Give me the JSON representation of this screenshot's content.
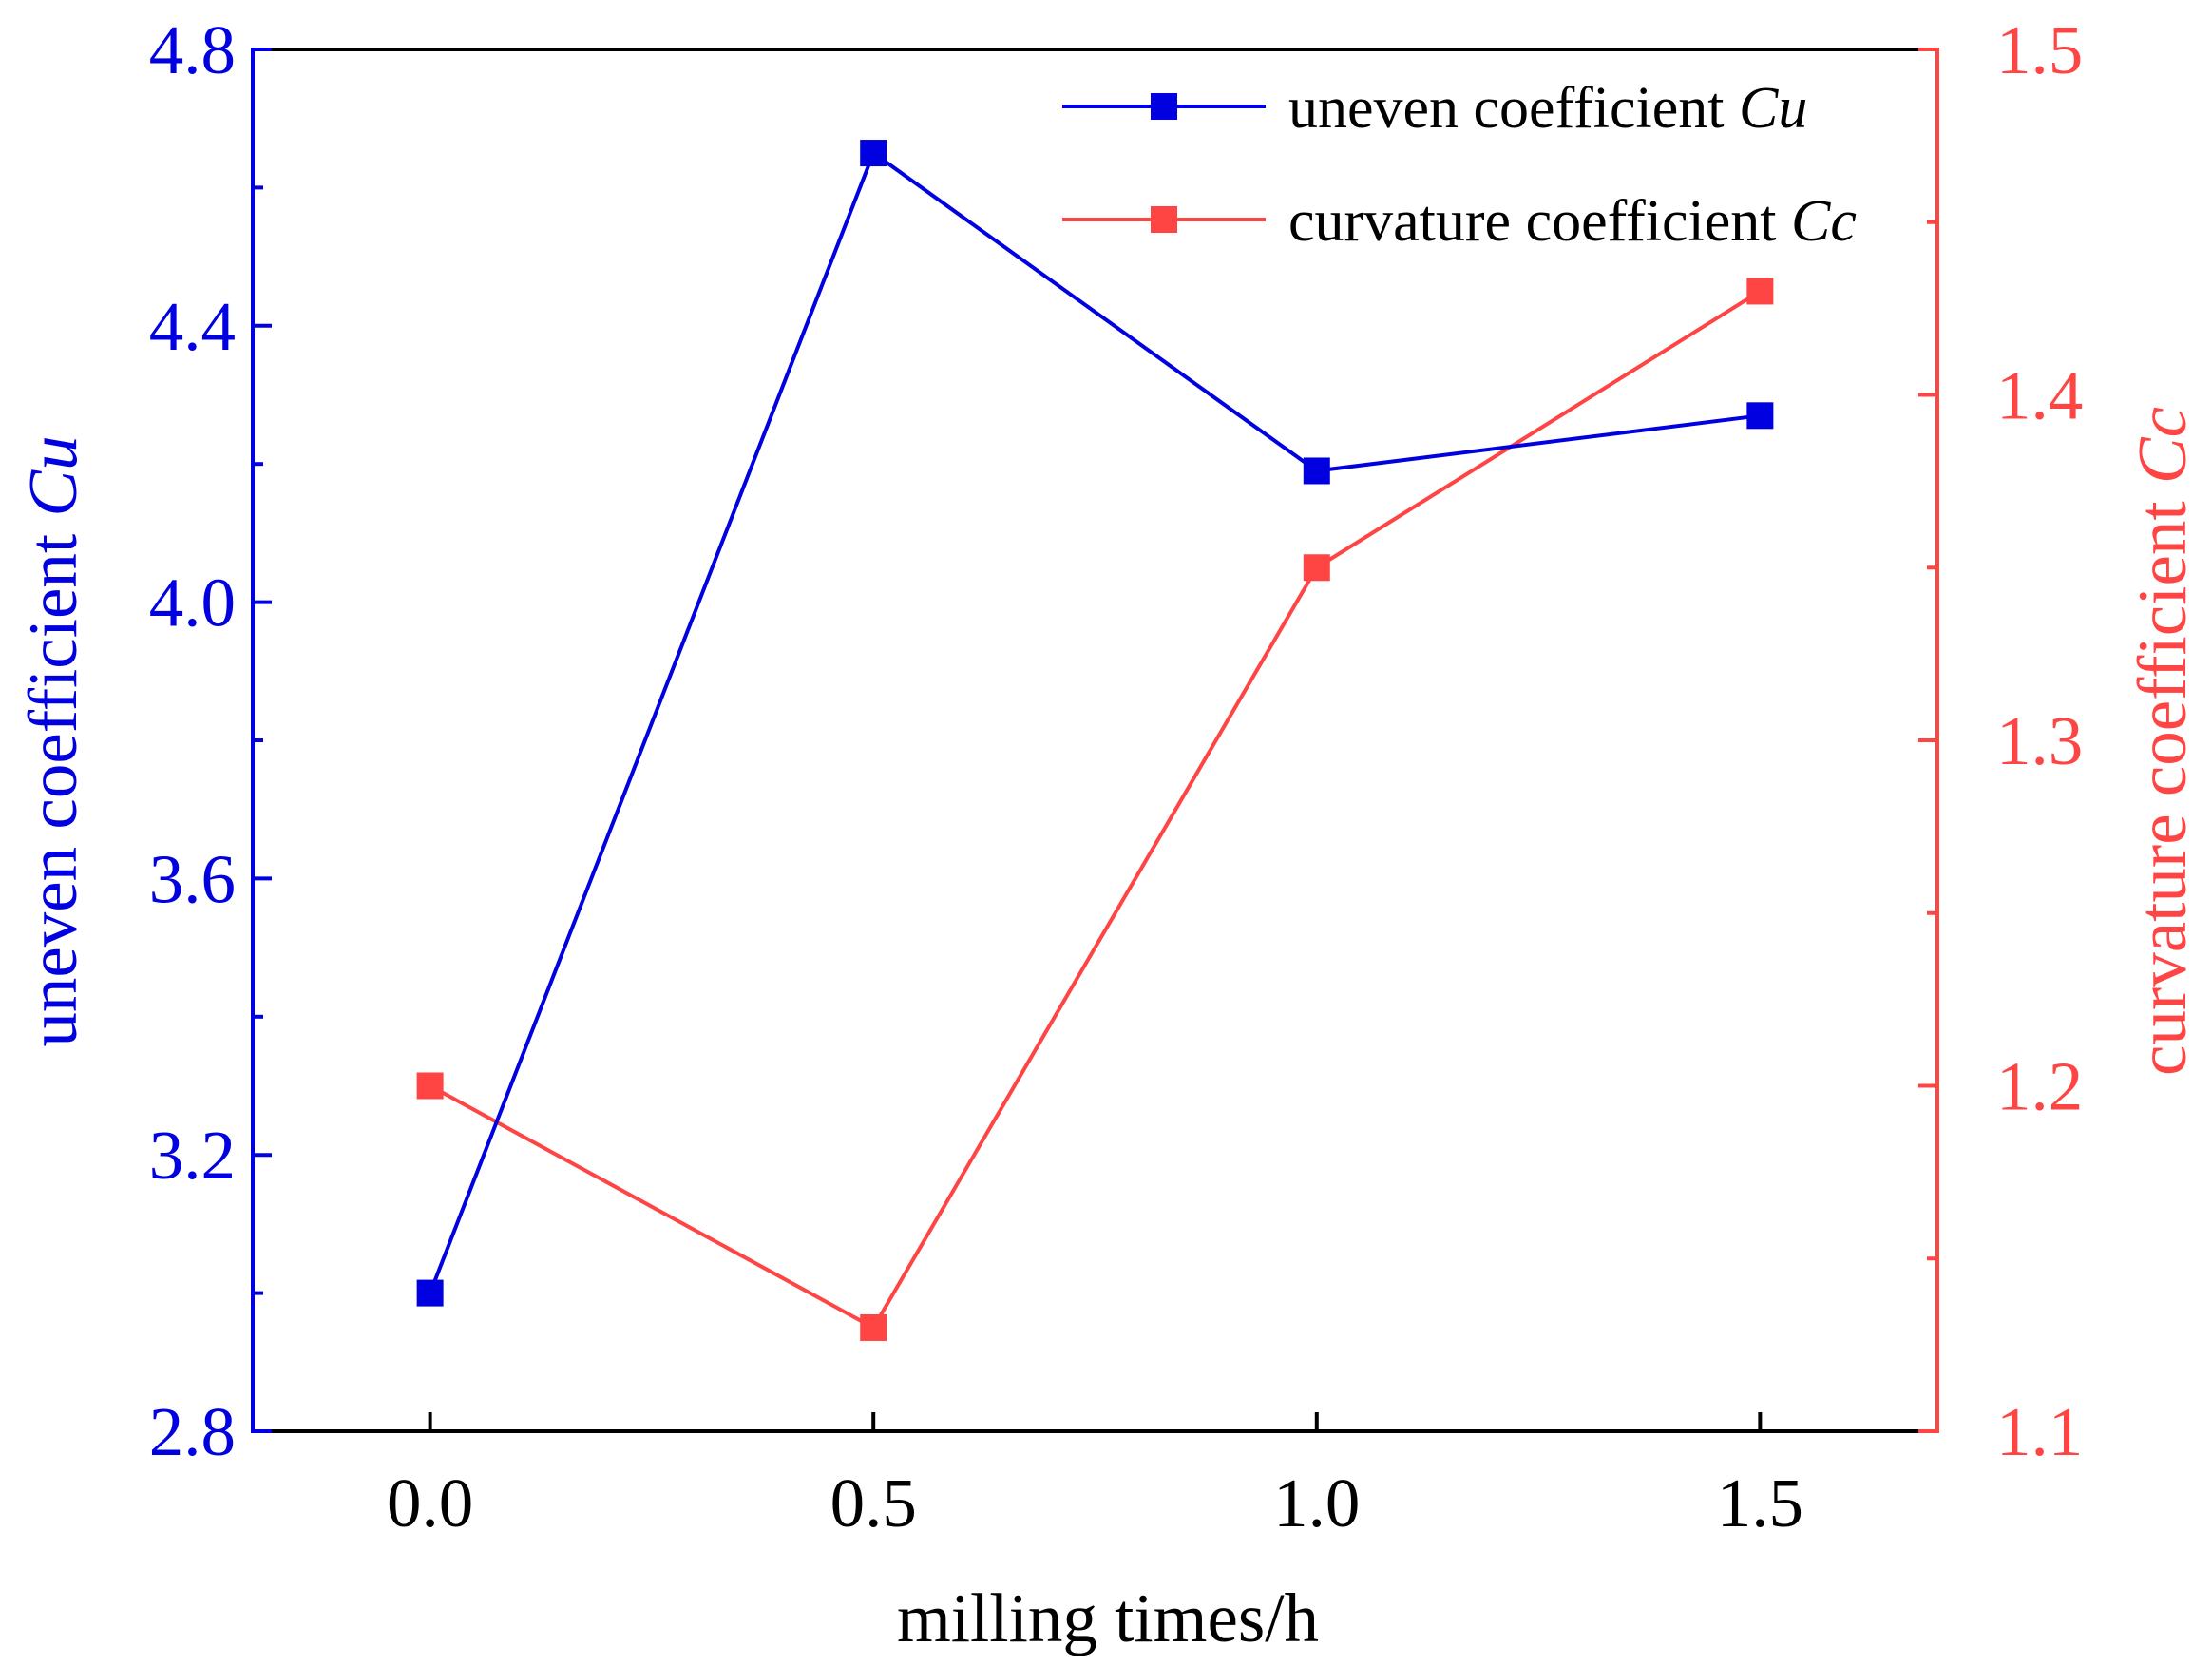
{
  "chart_data": {
    "type": "line",
    "x": [
      0.0,
      0.5,
      1.0,
      1.5
    ],
    "xlabel": "milling times/h",
    "xlim": [
      -0.2,
      1.7
    ],
    "xticks": [
      0.0,
      0.5,
      1.0,
      1.5
    ],
    "xtick_labels": [
      "0.0",
      "0.5",
      "1.0",
      "1.5"
    ],
    "y_left": {
      "label_main": "uneven coefficient ",
      "label_symbol": "Cu",
      "ylim": [
        2.8,
        4.8
      ],
      "ticks": [
        2.8,
        3.2,
        3.6,
        4.0,
        4.4,
        4.8
      ],
      "tick_labels": [
        "2.8",
        "3.2",
        "3.6",
        "4.0",
        "4.4",
        "4.8"
      ],
      "color": "#0000e0"
    },
    "y_right": {
      "label_main": "curvature coefficient ",
      "label_symbol": "Cc",
      "ylim": [
        1.1,
        1.5
      ],
      "ticks": [
        1.1,
        1.2,
        1.3,
        1.4,
        1.5
      ],
      "tick_labels": [
        "1.1",
        "1.2",
        "1.3",
        "1.4",
        "1.5"
      ],
      "color": "#ff4444"
    },
    "series": [
      {
        "name": "uneven coefficient Cu",
        "label_main": "uneven coefficient ",
        "label_symbol": "Cu",
        "axis": "left",
        "color": "#0000e0",
        "marker": "square",
        "values": [
          3.0,
          4.65,
          4.19,
          4.27
        ]
      },
      {
        "name": "curvature coefficient Cc",
        "label_main": "curvature coefficient ",
        "label_symbol": "Cc",
        "axis": "right",
        "color": "#ff4444",
        "marker": "square",
        "values": [
          1.2,
          1.13,
          1.35,
          1.43
        ]
      }
    ],
    "legend": "top-right"
  }
}
